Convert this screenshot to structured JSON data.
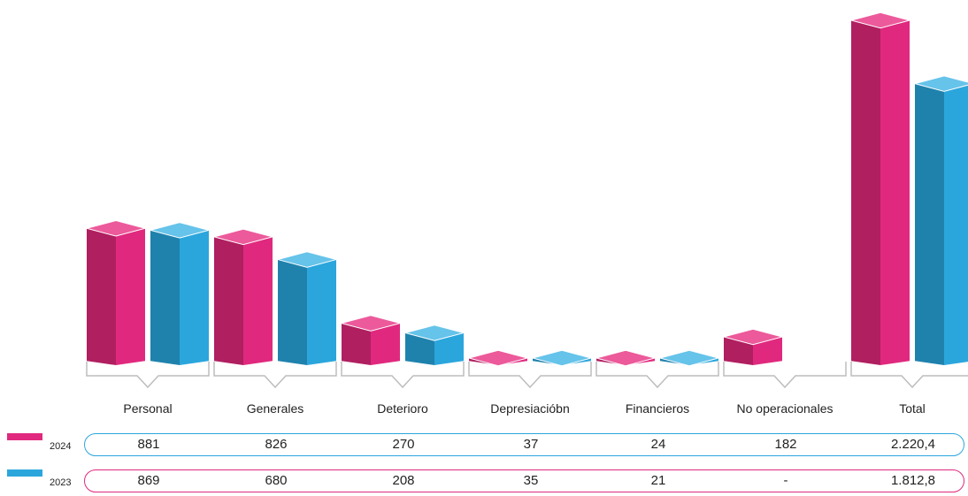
{
  "chart_data": {
    "type": "bar",
    "categories": [
      "Personal",
      "Generales",
      "Deterioro",
      "Depresiacióbn",
      "Financieros",
      "No operacionales",
      "Total"
    ],
    "series": [
      {
        "name": "2024",
        "values": [
          881,
          826,
          270,
          37,
          24,
          182,
          2220.4
        ],
        "labels": [
          "881",
          "826",
          "270",
          "37",
          "24",
          "182",
          "2.220,4"
        ],
        "color": "#e0297e"
      },
      {
        "name": "2023",
        "values": [
          869,
          680,
          208,
          35,
          21,
          null,
          1812.8
        ],
        "labels": [
          "869",
          "680",
          "208",
          "35",
          "21",
          "-",
          "1.812,8"
        ],
        "color": "#2ba6dc"
      }
    ],
    "grid": false
  },
  "colors": {
    "pink_front": "#e0297e",
    "pink_side": "#b01f60",
    "pink_top": "#ec5a9b",
    "blue_front": "#2ba6dc",
    "blue_side": "#1f82ad",
    "blue_top": "#66c3ea",
    "bracket": "#bdbdbd"
  }
}
